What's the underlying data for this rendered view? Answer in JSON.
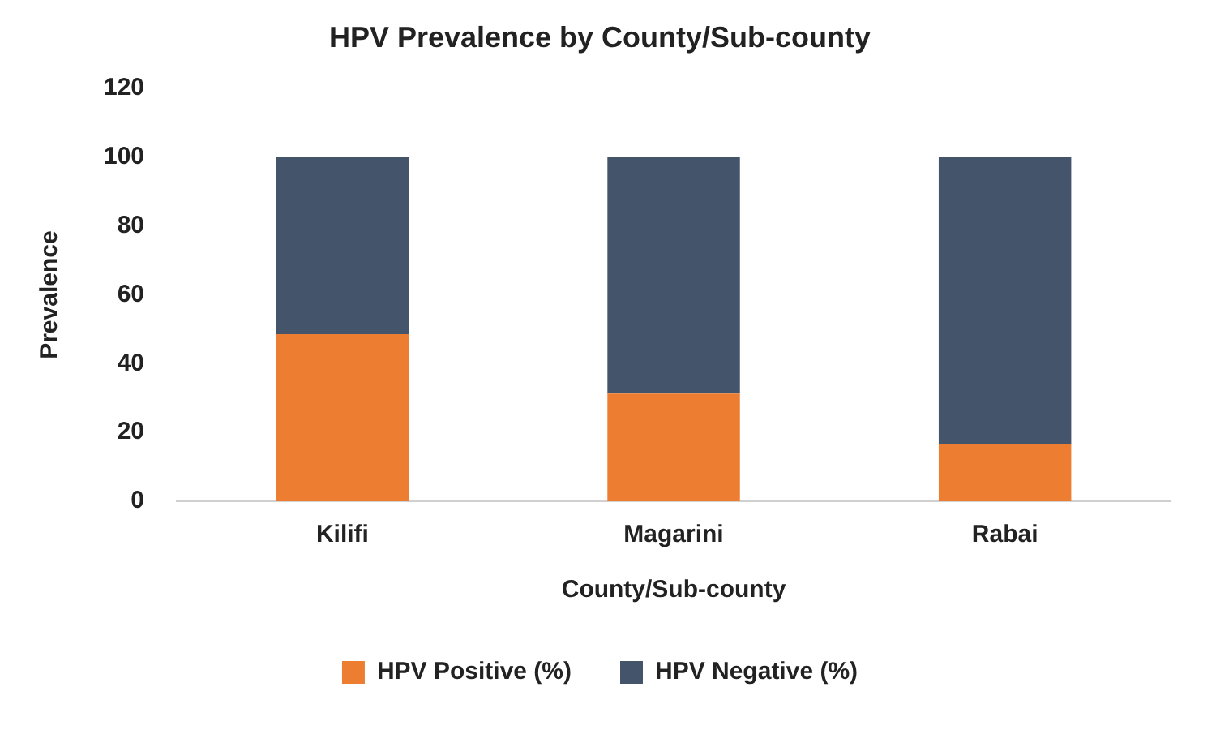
{
  "chart_data": {
    "type": "bar",
    "title": "HPV Prevalence by County/Sub-county",
    "xlabel": "County/Sub-county",
    "ylabel": "Prevalence",
    "categories": [
      "Kilifi",
      "Magarini",
      "Rabai"
    ],
    "series": [
      {
        "name": "HPV Positive (%)",
        "color": "#ed7d31",
        "values": [
          48.6,
          31.3,
          16.6
        ]
      },
      {
        "name": "HPV Negative (%)",
        "color": "#44546a",
        "values": [
          51.4,
          68.7,
          83.4
        ]
      }
    ],
    "stacked": true,
    "ylim": [
      0,
      120
    ],
    "yticks": [
      0,
      20,
      40,
      60,
      80,
      100,
      120
    ],
    "grid": false,
    "legend": "bottom"
  }
}
